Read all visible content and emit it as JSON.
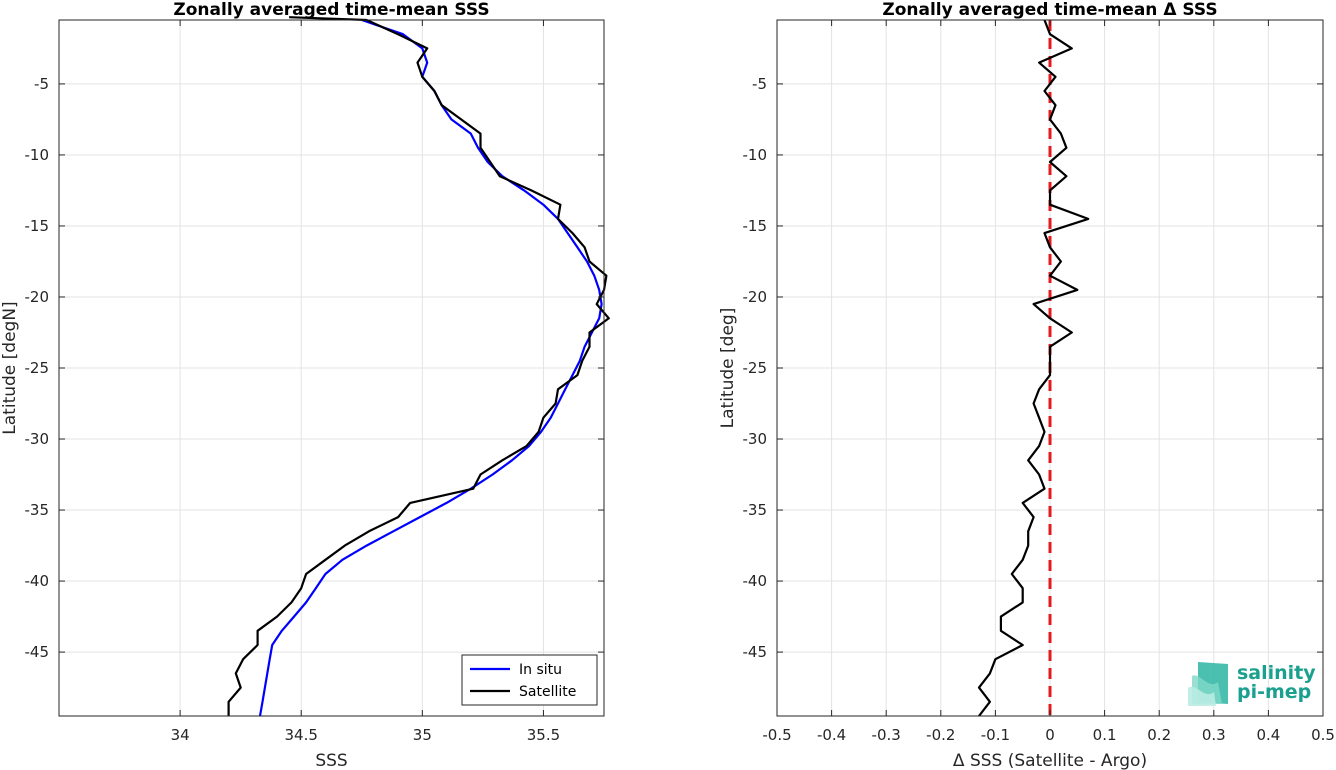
{
  "chart_data": [
    {
      "type": "line",
      "title": "Zonally averaged time-mean SSS",
      "xlabel": "SSS",
      "ylabel": "Latitude [degN]",
      "xlim": [
        33.5,
        35.75
      ],
      "ylim": [
        -49.5,
        -0.5
      ],
      "xticks": [
        34,
        34.5,
        35,
        35.5
      ],
      "xtick_labels": [
        "34",
        "34.5",
        "35",
        "35.5"
      ],
      "yticks": [
        -5,
        -10,
        -15,
        -20,
        -25,
        -30,
        -35,
        -40,
        -45
      ],
      "ytick_labels": [
        "-5",
        "-10",
        "-15",
        "-20",
        "-25",
        "-30",
        "-35",
        "-40",
        "-45"
      ],
      "grid": true,
      "legend": "bottom-right",
      "series": [
        {
          "name": "In situ",
          "color": "#0000ff",
          "points": [
            [
              34.75,
              -0.5
            ],
            [
              34.92,
              -1.5
            ],
            [
              35.0,
              -2.5
            ],
            [
              35.02,
              -3.5
            ],
            [
              35.0,
              -4.5
            ],
            [
              35.05,
              -5.5
            ],
            [
              35.08,
              -6.5
            ],
            [
              35.12,
              -7.5
            ],
            [
              35.2,
              -8.5
            ],
            [
              35.23,
              -9.5
            ],
            [
              35.27,
              -10.5
            ],
            [
              35.33,
              -11.5
            ],
            [
              35.42,
              -12.5
            ],
            [
              35.5,
              -13.5
            ],
            [
              35.56,
              -14.5
            ],
            [
              35.6,
              -15.5
            ],
            [
              35.64,
              -16.5
            ],
            [
              35.68,
              -17.5
            ],
            [
              35.71,
              -18.5
            ],
            [
              35.73,
              -19.5
            ],
            [
              35.74,
              -20.5
            ],
            [
              35.73,
              -21.5
            ],
            [
              35.7,
              -22.5
            ],
            [
              35.67,
              -23.5
            ],
            [
              35.65,
              -24.5
            ],
            [
              35.62,
              -25.5
            ],
            [
              35.59,
              -26.5
            ],
            [
              35.56,
              -27.5
            ],
            [
              35.53,
              -28.5
            ],
            [
              35.49,
              -29.5
            ],
            [
              35.44,
              -30.5
            ],
            [
              35.37,
              -31.5
            ],
            [
              35.29,
              -32.5
            ],
            [
              35.2,
              -33.5
            ],
            [
              35.1,
              -34.5
            ],
            [
              34.99,
              -35.5
            ],
            [
              34.88,
              -36.5
            ],
            [
              34.77,
              -37.5
            ],
            [
              34.67,
              -38.5
            ],
            [
              34.6,
              -39.5
            ],
            [
              34.56,
              -40.5
            ],
            [
              34.52,
              -41.5
            ],
            [
              34.47,
              -42.5
            ],
            [
              34.42,
              -43.5
            ],
            [
              34.38,
              -44.5
            ],
            [
              34.37,
              -45.5
            ],
            [
              34.36,
              -46.5
            ],
            [
              34.35,
              -47.5
            ],
            [
              34.34,
              -48.5
            ],
            [
              34.33,
              -49.5
            ]
          ]
        },
        {
          "name": "Satellite",
          "color": "#000000",
          "points": [
            [
              34.45,
              -0.3
            ],
            [
              34.77,
              -0.5
            ],
            [
              34.9,
              -1.5
            ],
            [
              35.02,
              -2.5
            ],
            [
              34.98,
              -3.5
            ],
            [
              35.0,
              -4.5
            ],
            [
              35.05,
              -5.5
            ],
            [
              35.08,
              -6.5
            ],
            [
              35.16,
              -7.5
            ],
            [
              35.24,
              -8.5
            ],
            [
              35.24,
              -9.5
            ],
            [
              35.28,
              -10.5
            ],
            [
              35.32,
              -11.5
            ],
            [
              35.45,
              -12.5
            ],
            [
              35.57,
              -13.5
            ],
            [
              35.56,
              -14.5
            ],
            [
              35.62,
              -15.5
            ],
            [
              35.67,
              -16.5
            ],
            [
              35.69,
              -17.5
            ],
            [
              35.76,
              -18.5
            ],
            [
              35.75,
              -19.5
            ],
            [
              35.72,
              -20.5
            ],
            [
              35.77,
              -21.5
            ],
            [
              35.69,
              -22.5
            ],
            [
              35.69,
              -23.5
            ],
            [
              35.66,
              -24.5
            ],
            [
              35.64,
              -25.5
            ],
            [
              35.56,
              -26.5
            ],
            [
              35.55,
              -27.5
            ],
            [
              35.5,
              -28.5
            ],
            [
              35.48,
              -29.5
            ],
            [
              35.43,
              -30.5
            ],
            [
              35.33,
              -31.5
            ],
            [
              35.24,
              -32.5
            ],
            [
              35.21,
              -33.5
            ],
            [
              34.95,
              -34.5
            ],
            [
              34.9,
              -35.5
            ],
            [
              34.78,
              -36.5
            ],
            [
              34.68,
              -37.5
            ],
            [
              34.6,
              -38.5
            ],
            [
              34.52,
              -39.5
            ],
            [
              34.5,
              -40.5
            ],
            [
              34.46,
              -41.5
            ],
            [
              34.4,
              -42.5
            ],
            [
              34.32,
              -43.5
            ],
            [
              34.32,
              -44.5
            ],
            [
              34.26,
              -45.5
            ],
            [
              34.23,
              -46.5
            ],
            [
              34.25,
              -47.5
            ],
            [
              34.2,
              -48.5
            ],
            [
              34.2,
              -49.5
            ]
          ]
        }
      ]
    },
    {
      "type": "line",
      "title": "Zonally averaged time-mean Δ SSS",
      "xlabel": "Δ SSS (Satellite - Argo)",
      "ylabel": "Latitude [deg]",
      "xlim": [
        -0.5,
        0.5
      ],
      "ylim": [
        -49.5,
        -0.5
      ],
      "xticks": [
        -0.5,
        -0.4,
        -0.3,
        -0.2,
        -0.1,
        0,
        0.1,
        0.2,
        0.3,
        0.4,
        0.5
      ],
      "xtick_labels": [
        "-0.5",
        "-0.4",
        "-0.3",
        "-0.2",
        "-0.1",
        "0",
        "0.1",
        "0.2",
        "0.3",
        "0.4",
        "0.5"
      ],
      "yticks": [
        -5,
        -10,
        -15,
        -20,
        -25,
        -30,
        -35,
        -40,
        -45
      ],
      "ytick_labels": [
        "-5",
        "-10",
        "-15",
        "-20",
        "-25",
        "-30",
        "-35",
        "-40",
        "-45"
      ],
      "grid": true,
      "reference_line": {
        "x": 0,
        "color": "#e41a1c",
        "style": "dashed"
      },
      "series": [
        {
          "color": "#000000",
          "points": [
            [
              -0.01,
              -0.5
            ],
            [
              0.0,
              -1.5
            ],
            [
              0.04,
              -2.5
            ],
            [
              -0.02,
              -3.5
            ],
            [
              0.01,
              -4.5
            ],
            [
              -0.01,
              -5.5
            ],
            [
              0.01,
              -6.5
            ],
            [
              0.0,
              -7.5
            ],
            [
              0.02,
              -8.5
            ],
            [
              0.03,
              -9.5
            ],
            [
              0.0,
              -10.5
            ],
            [
              0.03,
              -11.5
            ],
            [
              0.0,
              -12.5
            ],
            [
              0.0,
              -13.5
            ],
            [
              0.07,
              -14.5
            ],
            [
              -0.01,
              -15.5
            ],
            [
              0.0,
              -16.5
            ],
            [
              0.02,
              -17.5
            ],
            [
              0.0,
              -18.5
            ],
            [
              0.05,
              -19.5
            ],
            [
              -0.03,
              -20.5
            ],
            [
              0.0,
              -21.5
            ],
            [
              0.04,
              -22.5
            ],
            [
              0.0,
              -23.5
            ],
            [
              0.0,
              -24.5
            ],
            [
              0.0,
              -25.5
            ],
            [
              -0.02,
              -26.5
            ],
            [
              -0.03,
              -27.5
            ],
            [
              -0.02,
              -28.5
            ],
            [
              -0.01,
              -29.5
            ],
            [
              -0.02,
              -30.5
            ],
            [
              -0.04,
              -31.5
            ],
            [
              -0.02,
              -32.5
            ],
            [
              -0.01,
              -33.5
            ],
            [
              -0.05,
              -34.5
            ],
            [
              -0.03,
              -35.5
            ],
            [
              -0.04,
              -36.5
            ],
            [
              -0.04,
              -37.5
            ],
            [
              -0.05,
              -38.5
            ],
            [
              -0.07,
              -39.5
            ],
            [
              -0.05,
              -40.5
            ],
            [
              -0.05,
              -41.5
            ],
            [
              -0.09,
              -42.5
            ],
            [
              -0.09,
              -43.5
            ],
            [
              -0.05,
              -44.5
            ],
            [
              -0.1,
              -45.5
            ],
            [
              -0.11,
              -46.5
            ],
            [
              -0.13,
              -47.5
            ],
            [
              -0.11,
              -48.5
            ],
            [
              -0.13,
              -49.5
            ]
          ]
        }
      ]
    }
  ],
  "logo": {
    "line1": "salinity",
    "line2": "pi-mep",
    "color": "#1aa08e"
  }
}
